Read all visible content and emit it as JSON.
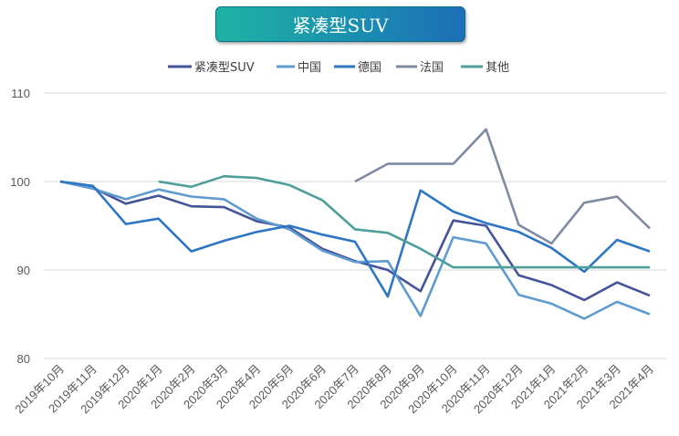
{
  "chart_data": {
    "type": "line",
    "title": "紧凑型SUV",
    "xlabel": "",
    "ylabel": "",
    "ylim": [
      80,
      110
    ],
    "yticks": [
      80,
      90,
      100,
      110
    ],
    "grid": true,
    "legend_position": "top",
    "categories": [
      "2019年10月",
      "2019年11月",
      "2019年12月",
      "2020年1月",
      "2020年2月",
      "2020年3月",
      "2020年4月",
      "2020年5月",
      "2020年6月",
      "2020年7月",
      "2020年8月",
      "2020年9月",
      "2020年10月",
      "2020年11月",
      "2020年12月",
      "2021年1月",
      "2021年2月",
      "2021年3月",
      "2021年4月"
    ],
    "series": [
      {
        "name": "紧凑型SUV",
        "color": "#44549a",
        "values": [
          100,
          99.3,
          97.5,
          98.4,
          97.2,
          97.1,
          95.5,
          94.8,
          92.4,
          91.0,
          90.0,
          87.6,
          95.6,
          95.0,
          89.4,
          88.3,
          86.6,
          88.6,
          87.1
        ]
      },
      {
        "name": "中国",
        "color": "#5f9bd0",
        "values": [
          100,
          99.2,
          98.0,
          99.1,
          98.3,
          98.0,
          95.8,
          94.6,
          92.2,
          90.9,
          91.0,
          84.8,
          93.7,
          93.0,
          87.2,
          86.2,
          84.5,
          86.4,
          85.0
        ]
      },
      {
        "name": "德国",
        "color": "#2e75c6",
        "values": [
          100,
          99.5,
          95.2,
          95.8,
          92.1,
          93.3,
          94.3,
          95.0,
          94.0,
          93.2,
          87.0,
          99.0,
          96.6,
          95.3,
          94.3,
          92.5,
          89.8,
          93.4,
          92.1
        ]
      },
      {
        "name": "法国",
        "color": "#7f8aa3",
        "values": [
          null,
          null,
          null,
          null,
          null,
          null,
          null,
          null,
          null,
          100,
          102.0,
          102.0,
          102.0,
          105.9,
          95.1,
          93.0,
          97.6,
          98.3,
          94.7
        ]
      },
      {
        "name": "其他",
        "color": "#4e9e9a",
        "values": [
          null,
          null,
          null,
          100,
          99.4,
          100.6,
          100.4,
          99.6,
          97.9,
          94.6,
          94.2,
          92.4,
          90.3,
          90.3,
          90.3,
          90.3,
          90.3,
          90.3,
          90.3
        ]
      }
    ]
  }
}
